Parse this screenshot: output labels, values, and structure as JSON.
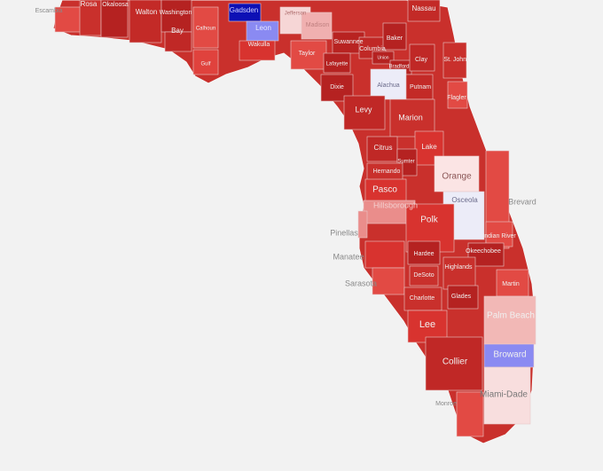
{
  "counties": [
    {
      "name": "Escambia",
      "color": "#e24a44"
    },
    {
      "name": "Rosa",
      "color": "#c9302c"
    },
    {
      "name": "Okaloosa",
      "color": "#b52221"
    },
    {
      "name": "Walton",
      "color": "#c32a27"
    },
    {
      "name": "Washington",
      "color": "#b52221"
    },
    {
      "name": "Bay",
      "color": "#c02826"
    },
    {
      "name": "Calhoun",
      "color": "#e24a44"
    },
    {
      "name": "Gulf",
      "color": "#e0423d"
    },
    {
      "name": "Gadsden",
      "color": "#0d10b5"
    },
    {
      "name": "Leon",
      "color": "#8a8af2"
    },
    {
      "name": "Wakulla",
      "color": "#d8332f"
    },
    {
      "name": "Jefferson",
      "color": "#f6d6d6"
    },
    {
      "name": "Madison",
      "color": "#f0b0b0"
    },
    {
      "name": "Taylor",
      "color": "#e24a44"
    },
    {
      "name": "Suwannee",
      "color": "#b82321"
    },
    {
      "name": "Lafayette",
      "color": "#b52221"
    },
    {
      "name": "Dixie",
      "color": "#b52221"
    },
    {
      "name": "Columbia",
      "color": "#c02826"
    },
    {
      "name": "Baker",
      "color": "#b52221"
    },
    {
      "name": "Nassau",
      "color": "#c32a27"
    },
    {
      "name": "Union",
      "color": "#b52221"
    },
    {
      "name": "Bradford",
      "color": "#b52221"
    },
    {
      "name": "Clay",
      "color": "#c02826"
    },
    {
      "name": "St. Johns",
      "color": "#c9302c"
    },
    {
      "name": "Alachua",
      "color": "#ececf8"
    },
    {
      "name": "Putnam",
      "color": "#c32a27"
    },
    {
      "name": "Flagler",
      "color": "#e24a44"
    },
    {
      "name": "Levy",
      "color": "#c02826"
    },
    {
      "name": "Marion",
      "color": "#c9302c"
    },
    {
      "name": "Citrus",
      "color": "#c02826"
    },
    {
      "name": "Lake",
      "color": "#d8332f"
    },
    {
      "name": "Sumter",
      "color": "#b52221"
    },
    {
      "name": "Hernando",
      "color": "#c9302c"
    },
    {
      "name": "Orange",
      "color": "#fbe4e4"
    },
    {
      "name": "Pasco",
      "color": "#d8332f"
    },
    {
      "name": "Hillsborough",
      "color": "#ea8d8b"
    },
    {
      "name": "Osceola",
      "color": "#ececf8"
    },
    {
      "name": "Brevard",
      "color": "#e24a44"
    },
    {
      "name": "Polk",
      "color": "#d8332f"
    },
    {
      "name": "Pinellas",
      "color": "#ea8d8b"
    },
    {
      "name": "Indian River",
      "color": "#e24a44"
    },
    {
      "name": "Manatee",
      "color": "#d8332f"
    },
    {
      "name": "Hardee",
      "color": "#b52221"
    },
    {
      "name": "Okeechobee",
      "color": "#b52221"
    },
    {
      "name": "Highlands",
      "color": "#c9302c"
    },
    {
      "name": "Sarasota",
      "color": "#e24a44"
    },
    {
      "name": "DeSoto",
      "color": "#c9302c"
    },
    {
      "name": "Martin",
      "color": "#e24a44"
    },
    {
      "name": "Charlotte",
      "color": "#c9302c"
    },
    {
      "name": "Glades",
      "color": "#b52221"
    },
    {
      "name": "Palm Beach",
      "color": "#f2b8b6"
    },
    {
      "name": "Lee",
      "color": "#d8332f"
    },
    {
      "name": "Collier",
      "color": "#c02826"
    },
    {
      "name": "Broward",
      "color": "#8a8af2"
    },
    {
      "name": "Miami-Dade",
      "color": "#f8dede"
    },
    {
      "name": "Monroe",
      "color": "#e24a44"
    }
  ]
}
